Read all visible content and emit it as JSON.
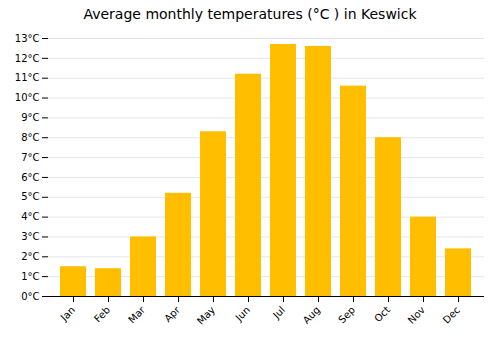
{
  "chart_data": {
    "type": "bar",
    "title": "Average monthly temperatures (°C ) in Keswick",
    "categories": [
      "Jan",
      "Feb",
      "Mar",
      "Apr",
      "May",
      "Jun",
      "Jul",
      "Aug",
      "Sep",
      "Oct",
      "Nov",
      "Dec"
    ],
    "values": [
      1.5,
      1.4,
      3.0,
      5.2,
      8.3,
      11.2,
      12.7,
      12.6,
      10.6,
      8.0,
      4.0,
      2.4
    ],
    "color": "#FFBF00",
    "ylim": [
      0,
      13
    ],
    "yticks": [
      {
        "value": 0,
        "label": "0°C"
      },
      {
        "value": 1,
        "label": "1°C"
      },
      {
        "value": 2,
        "label": "2°C"
      },
      {
        "value": 3,
        "label": "3°C"
      },
      {
        "value": 4,
        "label": "4°C"
      },
      {
        "value": 5,
        "label": "5°C"
      },
      {
        "value": 6,
        "label": "6°C"
      },
      {
        "value": 7,
        "label": "7°C"
      },
      {
        "value": 8,
        "label": "8°C"
      },
      {
        "value": 9,
        "label": "9°C"
      },
      {
        "value": 10,
        "label": "10°C"
      },
      {
        "value": 11,
        "label": "11°C"
      },
      {
        "value": 12,
        "label": "12°C"
      },
      {
        "value": 13,
        "label": "13°C"
      }
    ],
    "grid": true
  }
}
